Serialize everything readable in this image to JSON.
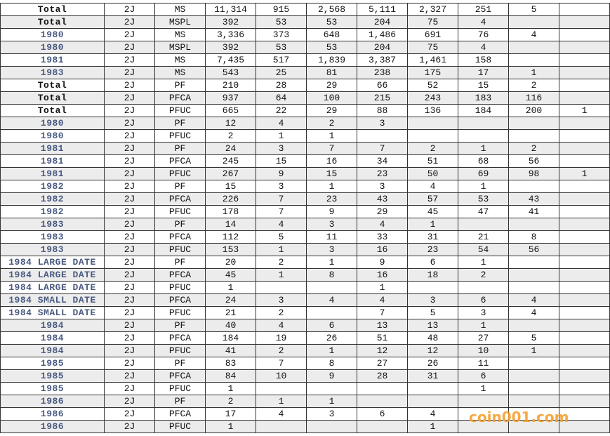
{
  "table": {
    "rows": [
      [
        "Total",
        "2J",
        "MS",
        "11,314",
        "915",
        "2,568",
        "5,111",
        "2,327",
        "251",
        "5",
        null
      ],
      [
        "Total",
        "2J",
        "MSPL",
        "392",
        "53",
        "53",
        "204",
        "75",
        "4",
        null,
        null
      ],
      [
        "1980",
        "2J",
        "MS",
        "3,336",
        "373",
        "648",
        "1,486",
        "691",
        "76",
        "4",
        null
      ],
      [
        "1980",
        "2J",
        "MSPL",
        "392",
        "53",
        "53",
        "204",
        "75",
        "4",
        null,
        null
      ],
      [
        "1981",
        "2J",
        "MS",
        "7,435",
        "517",
        "1,839",
        "3,387",
        "1,461",
        "158",
        null,
        null
      ],
      [
        "1983",
        "2J",
        "MS",
        "543",
        "25",
        "81",
        "238",
        "175",
        "17",
        "1",
        null
      ],
      [
        "Total",
        "2J",
        "PF",
        "210",
        "28",
        "29",
        "66",
        "52",
        "15",
        "2",
        null
      ],
      [
        "Total",
        "2J",
        "PFCA",
        "937",
        "64",
        "100",
        "215",
        "243",
        "183",
        "116",
        null
      ],
      [
        "Total",
        "2J",
        "PFUC",
        "665",
        "22",
        "29",
        "88",
        "136",
        "184",
        "200",
        "1"
      ],
      [
        "1980",
        "2J",
        "PF",
        "12",
        "4",
        "2",
        "3",
        null,
        null,
        null,
        null
      ],
      [
        "1980",
        "2J",
        "PFUC",
        "2",
        "1",
        "1",
        null,
        null,
        null,
        null,
        null
      ],
      [
        "1981",
        "2J",
        "PF",
        "24",
        "3",
        "7",
        "7",
        "2",
        "1",
        "2",
        null
      ],
      [
        "1981",
        "2J",
        "PFCA",
        "245",
        "15",
        "16",
        "34",
        "51",
        "68",
        "56",
        null
      ],
      [
        "1981",
        "2J",
        "PFUC",
        "267",
        "9",
        "15",
        "23",
        "50",
        "69",
        "98",
        "1"
      ],
      [
        "1982",
        "2J",
        "PF",
        "15",
        "3",
        "1",
        "3",
        "4",
        "1",
        null,
        null
      ],
      [
        "1982",
        "2J",
        "PFCA",
        "226",
        "7",
        "23",
        "43",
        "57",
        "53",
        "43",
        null
      ],
      [
        "1982",
        "2J",
        "PFUC",
        "178",
        "7",
        "9",
        "29",
        "45",
        "47",
        "41",
        null
      ],
      [
        "1983",
        "2J",
        "PF",
        "14",
        "4",
        "3",
        "4",
        "1",
        null,
        null,
        null
      ],
      [
        "1983",
        "2J",
        "PFCA",
        "112",
        "5",
        "11",
        "33",
        "31",
        "21",
        "8",
        null
      ],
      [
        "1983",
        "2J",
        "PFUC",
        "153",
        "1",
        "3",
        "16",
        "23",
        "54",
        "56",
        null
      ],
      [
        "1984 LARGE DATE",
        "2J",
        "PF",
        "20",
        "2",
        "1",
        "9",
        "6",
        "1",
        null,
        null
      ],
      [
        "1984 LARGE DATE",
        "2J",
        "PFCA",
        "45",
        "1",
        "8",
        "16",
        "18",
        "2",
        null,
        null
      ],
      [
        "1984 LARGE DATE",
        "2J",
        "PFUC",
        "1",
        null,
        null,
        "1",
        null,
        null,
        null,
        null
      ],
      [
        "1984 SMALL DATE",
        "2J",
        "PFCA",
        "24",
        "3",
        "4",
        "4",
        "3",
        "6",
        "4",
        null
      ],
      [
        "1984 SMALL DATE",
        "2J",
        "PFUC",
        "21",
        "2",
        null,
        "7",
        "5",
        "3",
        "4",
        null
      ],
      [
        "1984",
        "2J",
        "PF",
        "40",
        "4",
        "6",
        "13",
        "13",
        "1",
        null,
        null
      ],
      [
        "1984",
        "2J",
        "PFCA",
        "184",
        "19",
        "26",
        "51",
        "48",
        "27",
        "5",
        null
      ],
      [
        "1984",
        "2J",
        "PFUC",
        "41",
        "2",
        "1",
        "12",
        "12",
        "10",
        "1",
        null
      ],
      [
        "1985",
        "2J",
        "PF",
        "83",
        "7",
        "8",
        "27",
        "26",
        "11",
        null,
        null
      ],
      [
        "1985",
        "2J",
        "PFCA",
        "84",
        "10",
        "9",
        "28",
        "31",
        "6",
        null,
        null
      ],
      [
        "1985",
        "2J",
        "PFUC",
        "1",
        null,
        null,
        null,
        null,
        "1",
        null,
        null
      ],
      [
        "1986",
        "2J",
        "PF",
        "2",
        "1",
        "1",
        null,
        null,
        null,
        null,
        null
      ],
      [
        "1986",
        "2J",
        "PFCA",
        "17",
        "4",
        "3",
        "6",
        "4",
        null,
        null,
        null
      ],
      [
        "1986",
        "2J",
        "PFUC",
        "1",
        null,
        null,
        null,
        "1",
        null,
        null,
        null
      ]
    ]
  },
  "watermark": "coin001.com"
}
